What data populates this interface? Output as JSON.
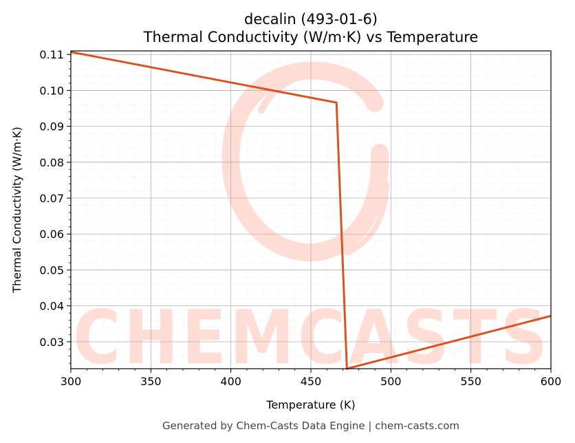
{
  "chart_data": {
    "type": "line",
    "title": "decalin (493-01-6)",
    "subtitle": "Thermal Conductivity (W/m·K) vs Temperature",
    "xlabel": "Temperature (K)",
    "ylabel": "Thermal Conductivity (W/m·K)",
    "xlim": [
      300,
      600
    ],
    "ylim": [
      0.0225,
      0.111
    ],
    "xticks": [
      300,
      350,
      400,
      450,
      500,
      550,
      600
    ],
    "yticks": [
      0.03,
      0.04,
      0.05,
      0.06,
      0.07,
      0.08,
      0.09,
      0.1,
      0.11
    ],
    "grid": true,
    "series": [
      {
        "color": "#d95322",
        "x": [
          300,
          466,
          472.5,
          600
        ],
        "y": [
          0.1107,
          0.0966,
          0.0225,
          0.0372
        ]
      }
    ]
  },
  "watermark": {
    "text": "CHEMCASTS",
    "color": "#ffdcd4"
  },
  "footer": "Generated by Chem-Casts Data Engine | chem-casts.com"
}
